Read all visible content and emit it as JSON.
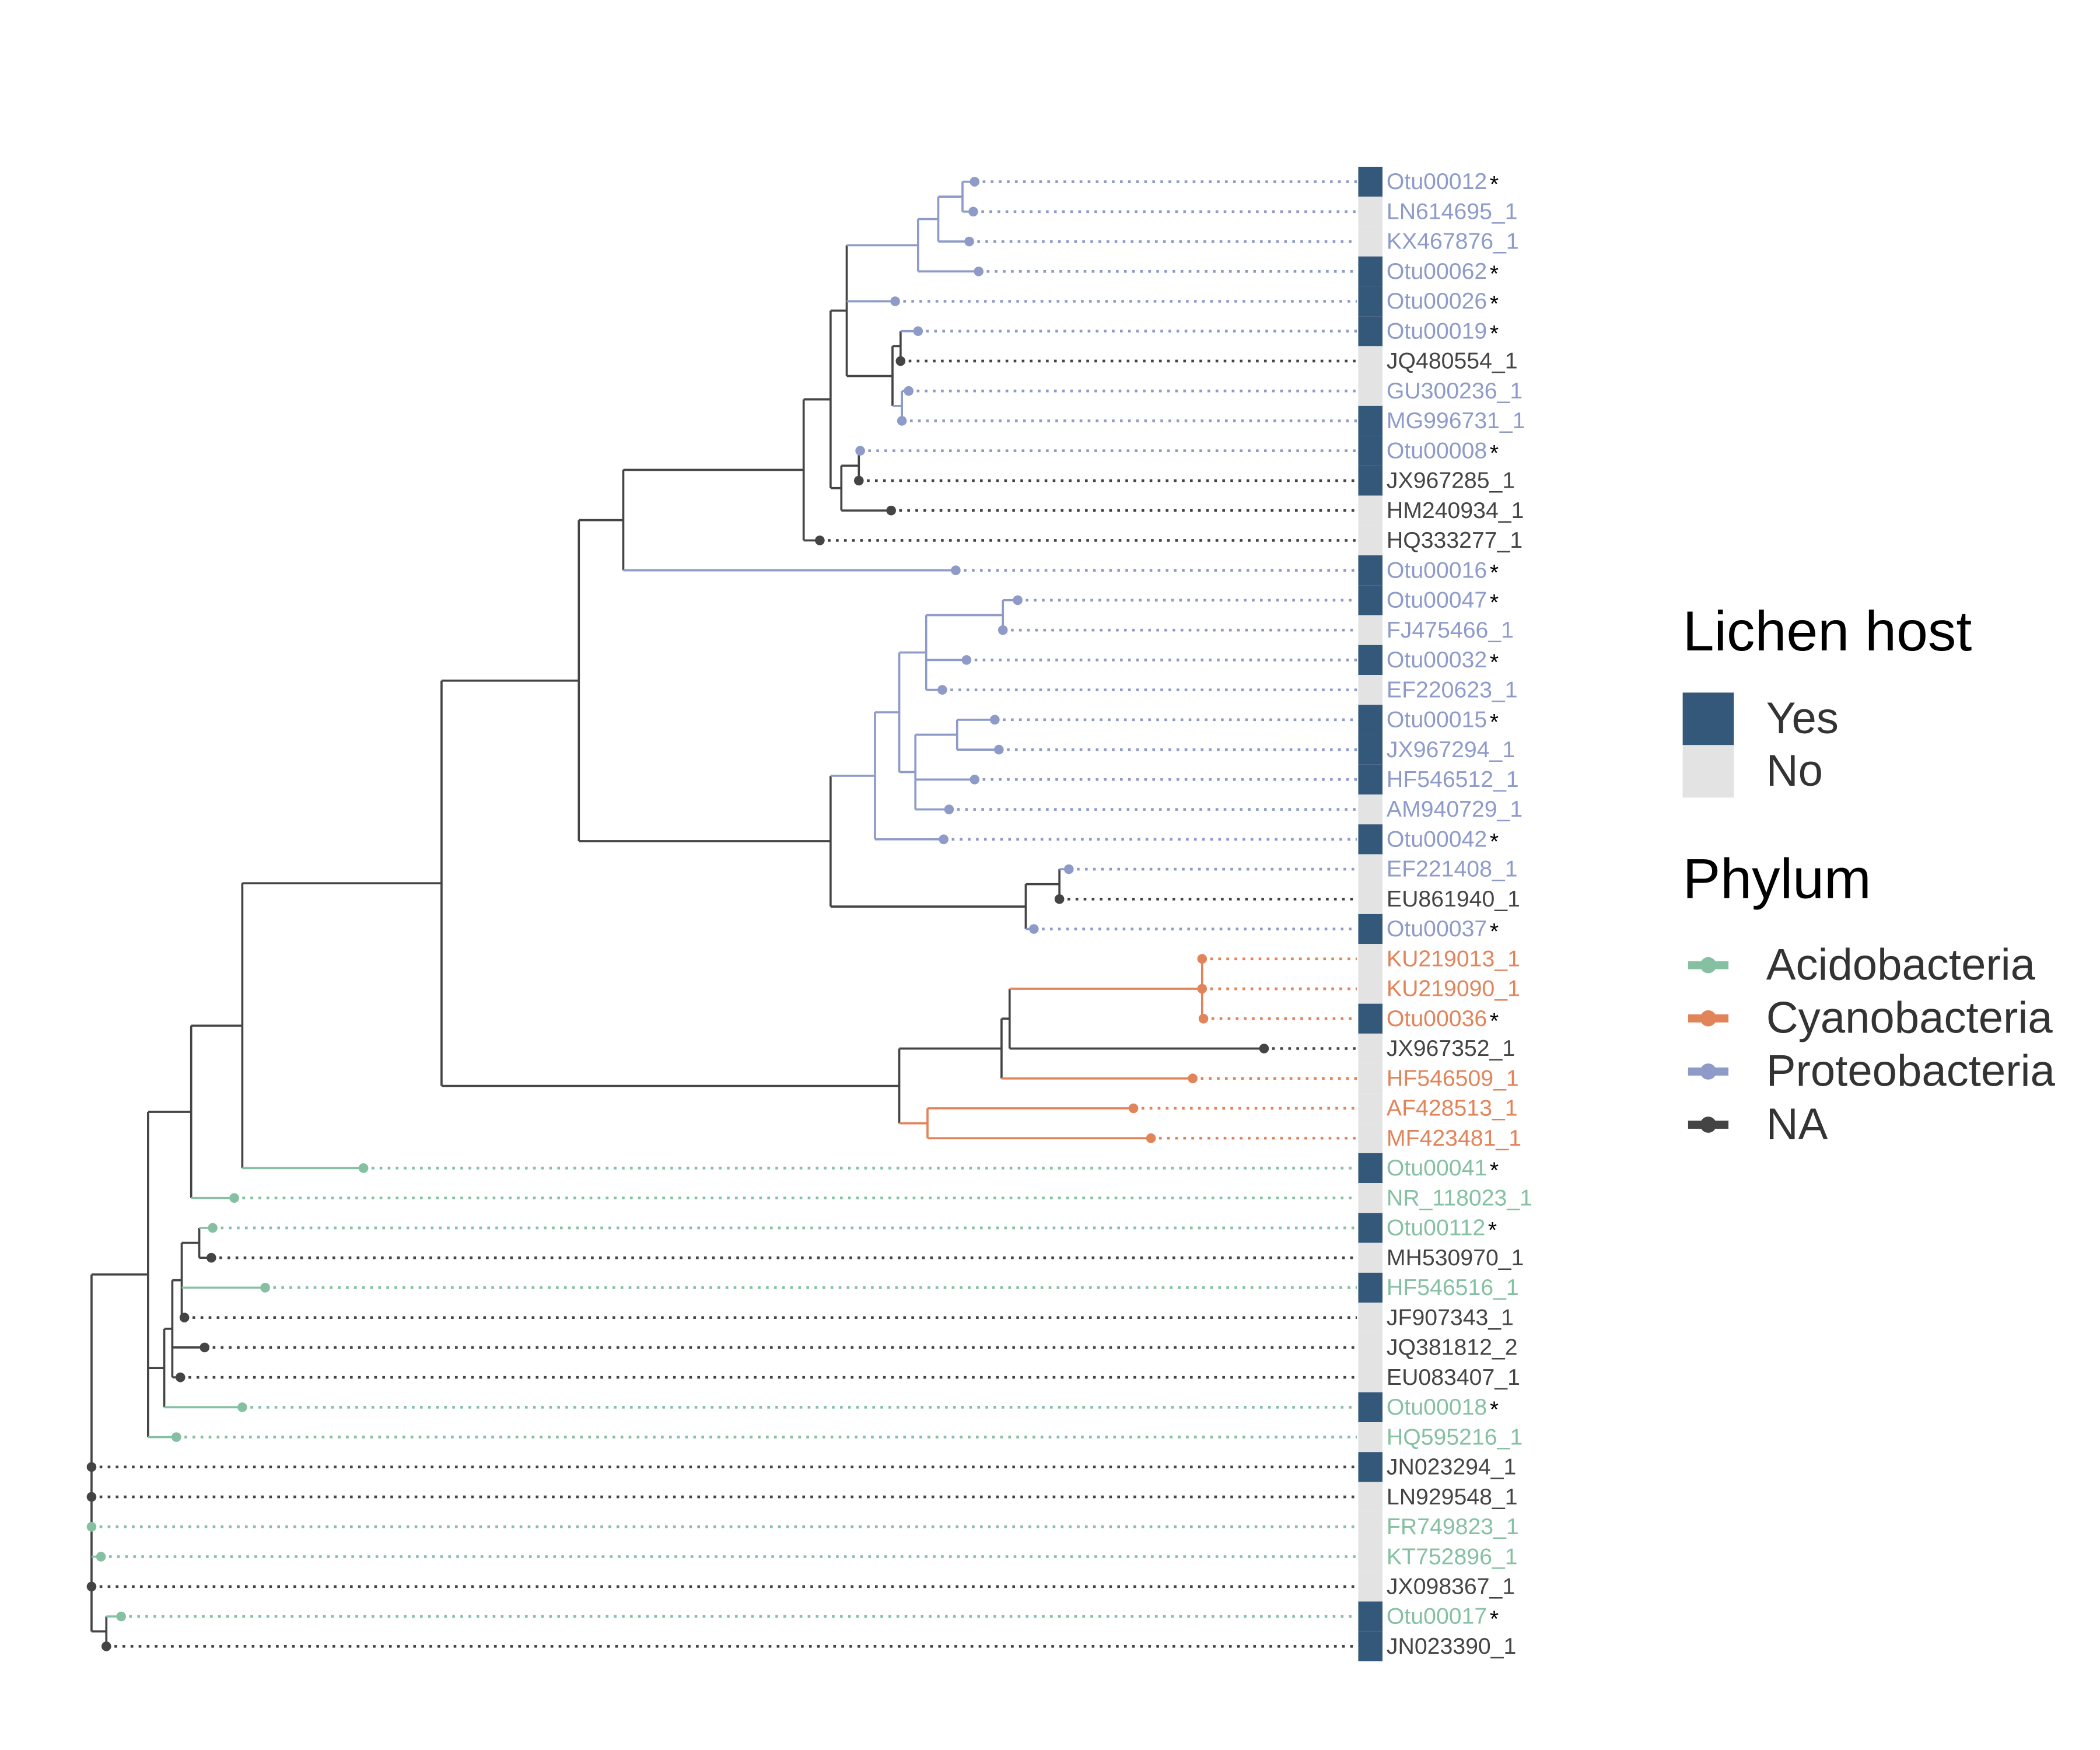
{
  "legend_host": {
    "title": "Lichen host",
    "entries": [
      {
        "label": "Yes",
        "color": "#34587a"
      },
      {
        "label": "No",
        "color": "#e3e3e3"
      }
    ]
  },
  "legend_phylum": {
    "title": "Phylum",
    "entries": [
      {
        "label": "Acidobacteria",
        "color": "#86c0a2"
      },
      {
        "label": "Cyanobacteria",
        "color": "#e2845a"
      },
      {
        "label": "Proteobacteria",
        "color": "#8e9bc9"
      },
      {
        "label": "NA",
        "color": "#444444"
      }
    ]
  },
  "tips": [
    {
      "label": "Otu00012",
      "mark": "*",
      "phylum": "Proteobacteria",
      "host": "Yes"
    },
    {
      "label": "LN614695_1",
      "phylum": "Proteobacteria",
      "host": "No"
    },
    {
      "label": "KX467876_1",
      "phylum": "Proteobacteria",
      "host": "No"
    },
    {
      "label": "Otu00062",
      "mark": "*",
      "phylum": "Proteobacteria",
      "host": "Yes"
    },
    {
      "label": "Otu00026",
      "mark": "*",
      "phylum": "Proteobacteria",
      "host": "Yes"
    },
    {
      "label": "Otu00019",
      "mark": "*",
      "phylum": "Proteobacteria",
      "host": "Yes"
    },
    {
      "label": "JQ480554_1",
      "phylum": "NA",
      "host": "No"
    },
    {
      "label": "GU300236_1",
      "phylum": "Proteobacteria",
      "host": "No"
    },
    {
      "label": "MG996731_1",
      "phylum": "Proteobacteria",
      "host": "Yes"
    },
    {
      "label": "Otu00008",
      "mark": "*",
      "phylum": "Proteobacteria",
      "host": "Yes"
    },
    {
      "label": "JX967285_1",
      "phylum": "NA",
      "host": "Yes"
    },
    {
      "label": "HM240934_1",
      "phylum": "NA",
      "host": "No"
    },
    {
      "label": "HQ333277_1",
      "phylum": "NA",
      "host": "No"
    },
    {
      "label": "Otu00016",
      "mark": "*",
      "phylum": "Proteobacteria",
      "host": "Yes"
    },
    {
      "label": "Otu00047",
      "mark": "*",
      "phylum": "Proteobacteria",
      "host": "Yes"
    },
    {
      "label": "FJ475466_1",
      "phylum": "Proteobacteria",
      "host": "No"
    },
    {
      "label": "Otu00032",
      "mark": "*",
      "phylum": "Proteobacteria",
      "host": "Yes"
    },
    {
      "label": "EF220623_1",
      "phylum": "Proteobacteria",
      "host": "No"
    },
    {
      "label": "Otu00015",
      "mark": "*",
      "phylum": "Proteobacteria",
      "host": "Yes"
    },
    {
      "label": "JX967294_1",
      "phylum": "Proteobacteria",
      "host": "Yes"
    },
    {
      "label": "HF546512_1",
      "phylum": "Proteobacteria",
      "host": "Yes"
    },
    {
      "label": "AM940729_1",
      "phylum": "Proteobacteria",
      "host": "No"
    },
    {
      "label": "Otu00042",
      "mark": "*",
      "phylum": "Proteobacteria",
      "host": "Yes"
    },
    {
      "label": "EF221408_1",
      "phylum": "Proteobacteria",
      "host": "No"
    },
    {
      "label": "EU861940_1",
      "phylum": "NA",
      "host": "No"
    },
    {
      "label": "Otu00037",
      "mark": "*",
      "phylum": "Proteobacteria",
      "host": "Yes"
    },
    {
      "label": "KU219013_1",
      "phylum": "Cyanobacteria",
      "host": "No"
    },
    {
      "label": "KU219090_1",
      "phylum": "Cyanobacteria",
      "host": "No"
    },
    {
      "label": "Otu00036",
      "mark": "*",
      "phylum": "Cyanobacteria",
      "host": "Yes"
    },
    {
      "label": "JX967352_1",
      "phylum": "NA",
      "host": "No"
    },
    {
      "label": "HF546509_1",
      "phylum": "Cyanobacteria",
      "host": "No"
    },
    {
      "label": "AF428513_1",
      "phylum": "Cyanobacteria",
      "host": "No"
    },
    {
      "label": "MF423481_1",
      "phylum": "Cyanobacteria",
      "host": "No"
    },
    {
      "label": "Otu00041",
      "mark": "*",
      "phylum": "Acidobacteria",
      "host": "Yes"
    },
    {
      "label": "NR_118023_1",
      "phylum": "Acidobacteria",
      "host": "No"
    },
    {
      "label": "Otu00112",
      "mark": "*",
      "phylum": "Acidobacteria",
      "host": "Yes"
    },
    {
      "label": "MH530970_1",
      "phylum": "NA",
      "host": "No"
    },
    {
      "label": "HF546516_1",
      "phylum": "Acidobacteria",
      "host": "Yes"
    },
    {
      "label": "JF907343_1",
      "phylum": "NA",
      "host": "No"
    },
    {
      "label": "JQ381812_2",
      "phylum": "NA",
      "host": "No"
    },
    {
      "label": "EU083407_1",
      "phylum": "NA",
      "host": "No"
    },
    {
      "label": "Otu00018",
      "mark": "*",
      "phylum": "Acidobacteria",
      "host": "Yes"
    },
    {
      "label": "HQ595216_1",
      "phylum": "Acidobacteria",
      "host": "No"
    },
    {
      "label": "JN023294_1",
      "phylum": "NA",
      "host": "Yes"
    },
    {
      "label": "LN929548_1",
      "phylum": "NA",
      "host": "No"
    },
    {
      "label": "FR749823_1",
      "phylum": "Acidobacteria",
      "host": "No"
    },
    {
      "label": "KT752896_1",
      "phylum": "Acidobacteria",
      "host": "No"
    },
    {
      "label": "JX098367_1",
      "phylum": "NA",
      "host": "No"
    },
    {
      "label": "Otu00017",
      "mark": "*",
      "phylum": "Acidobacteria",
      "host": "Yes"
    },
    {
      "label": "JN023390_1",
      "phylum": "NA",
      "host": "Yes"
    }
  ]
}
